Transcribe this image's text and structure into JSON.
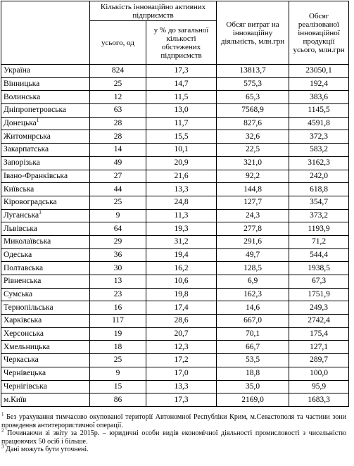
{
  "table": {
    "header": {
      "group": "Кількість інноваційно активних підприємств",
      "count": "усього, од",
      "share": "у % до загальної кількості обстежених підприємств",
      "cost": "Обсяг витрат на інноваційну діяльність, млн.грн",
      "sales": "Обсяг реалізованої інноваційної продукції усього, млн.грн"
    },
    "rows": [
      {
        "region": "Україна",
        "values": [
          "824",
          "17,3",
          "13813,7",
          "23050,1"
        ]
      },
      {
        "region": "Вінницька",
        "values": [
          "25",
          "14,7",
          "575,3",
          "192,4"
        ]
      },
      {
        "region": "Волинська",
        "values": [
          "12",
          "11,5",
          "65,3",
          "383,6"
        ]
      },
      {
        "region": "Дніпропетровська",
        "values": [
          "63",
          "13,0",
          "7568,9",
          "1145,5"
        ]
      },
      {
        "region": "Донецька",
        "mark": "1",
        "values": [
          "28",
          "11,7",
          "827,6",
          "4591,8"
        ]
      },
      {
        "region": "Житомирська",
        "values": [
          "28",
          "15,5",
          "32,6",
          "372,3"
        ]
      },
      {
        "region": "Закарпатська",
        "values": [
          "14",
          "10,1",
          "22,5",
          "583,2"
        ]
      },
      {
        "region": "Запорізька",
        "values": [
          "49",
          "20,9",
          "321,0",
          "3162,3"
        ]
      },
      {
        "region": "Івано-Франківська",
        "values": [
          "27",
          "21,6",
          "92,2",
          "242,0"
        ]
      },
      {
        "region": "Київська",
        "values": [
          "44",
          "13,3",
          "144,8",
          "618,8"
        ]
      },
      {
        "region": "Кіровоградська",
        "values": [
          "25",
          "24,8",
          "127,7",
          "354,7"
        ]
      },
      {
        "region": "Луганська",
        "mark": "3",
        "values": [
          "9",
          "11,3",
          "24,3",
          "373,2"
        ]
      },
      {
        "region": "Львівська",
        "values": [
          "64",
          "19,3",
          "277,8",
          "1193,9"
        ]
      },
      {
        "region": "Миколаївська",
        "values": [
          "29",
          "31,2",
          "291,6",
          "71,2"
        ]
      },
      {
        "region": "Одеська",
        "values": [
          "36",
          "19,4",
          "49,7",
          "544,4"
        ]
      },
      {
        "region": "Полтавська",
        "values": [
          "30",
          "16,2",
          "128,5",
          "1938,5"
        ]
      },
      {
        "region": "Рівненська",
        "values": [
          "13",
          "10,6",
          "6,9",
          "67,3"
        ]
      },
      {
        "region": "Сумська",
        "values": [
          "23",
          "19,8",
          "162,3",
          "1751,9"
        ]
      },
      {
        "region": "Тернопільська",
        "values": [
          "16",
          "17,4",
          "14,6",
          "249,3"
        ]
      },
      {
        "region": "Харківська",
        "values": [
          "117",
          "28,6",
          "667,0",
          "2742,4"
        ]
      },
      {
        "region": "Херсонська",
        "values": [
          "19",
          "20,7",
          "70,1",
          "175,4"
        ]
      },
      {
        "region": "Хмельницька",
        "values": [
          "18",
          "12,3",
          "66,7",
          "127,1"
        ]
      },
      {
        "region": "Черкаська",
        "values": [
          "25",
          "17,2",
          "53,5",
          "289,7"
        ]
      },
      {
        "region": "Чернівецька",
        "values": [
          "9",
          "17,0",
          "18,8",
          "100,0"
        ]
      },
      {
        "region": "Чернігівська",
        "values": [
          "15",
          "13,3",
          "35,0",
          "95,9"
        ]
      },
      {
        "region": "м.Київ",
        "values": [
          "86",
          "17,3",
          "2169,0",
          "1683,3"
        ]
      }
    ]
  },
  "footnotes": [
    {
      "mark": "1",
      "text": "Без урахування тимчасово окупованої території Автономної Республіки Крим, м.Севастополя та частини зони проведення антитерористичної операції."
    },
    {
      "mark": "2",
      "text": "Починаючи зі звіту за 2015р. – юридичні особи видів економічної діяльності промисловості з чисельністю працюючих 50 осіб і більше."
    },
    {
      "mark": "3",
      "text": "Дані можуть бути уточнені."
    }
  ]
}
